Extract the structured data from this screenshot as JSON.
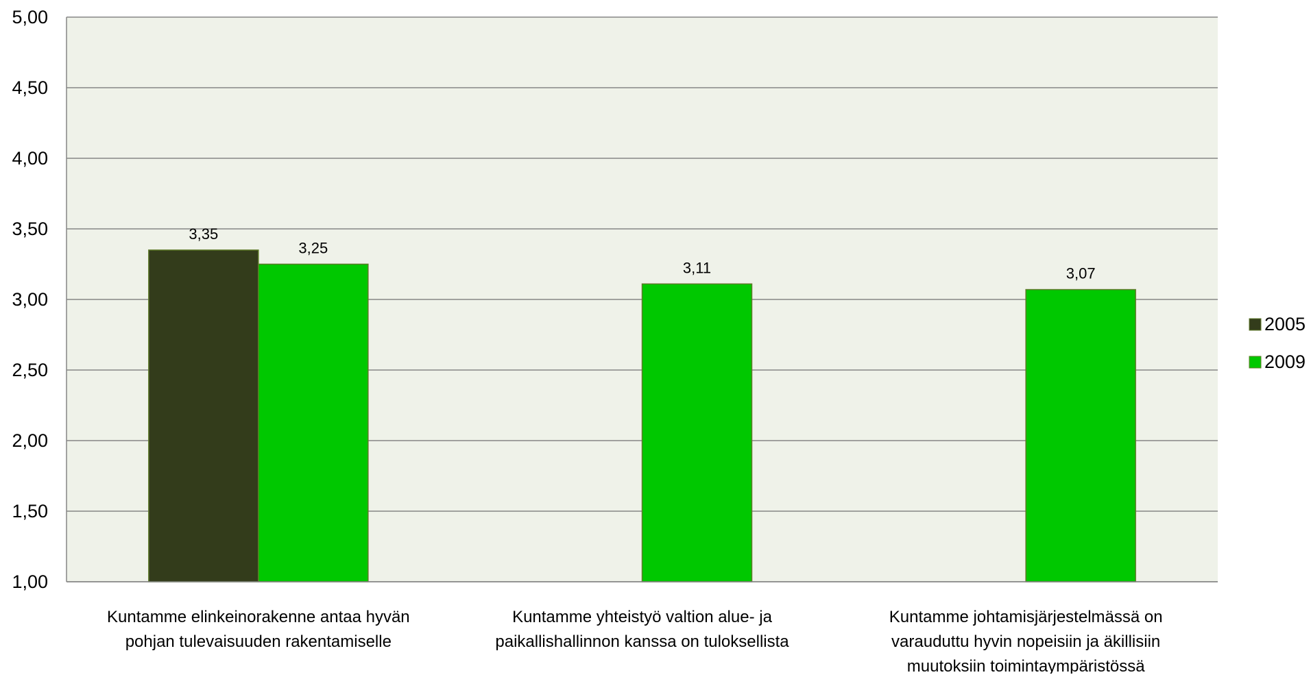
{
  "chart_data": {
    "type": "bar",
    "title": "",
    "xlabel": "",
    "ylabel": "",
    "ylim": [
      1.0,
      5.0
    ],
    "yticks": [
      "1,00",
      "1,50",
      "2,00",
      "2,50",
      "3,00",
      "3,50",
      "4,00",
      "4,50",
      "5,00"
    ],
    "grid": true,
    "legend_position": "right",
    "categories": [
      [
        "Kuntamme elinkeinorakenne antaa hyvän",
        "pohjan tulevaisuuden rakentamiselle"
      ],
      [
        "Kuntamme yhteistyö valtion alue- ja",
        "paikallishallinnon kanssa on tuloksellista"
      ],
      [
        "Kuntamme johtamisjärjestelmässä on",
        "varauduttu hyvin nopeisiin ja äkillisiin",
        "muutoksiin toimintaympäristössä"
      ]
    ],
    "series": [
      {
        "name": "2005",
        "color": "#333c1b",
        "values": [
          3.35,
          null,
          null
        ],
        "labels": [
          "3,35",
          "",
          ""
        ]
      },
      {
        "name": "2009",
        "color": "#00c800",
        "values": [
          3.25,
          3.11,
          3.07
        ],
        "labels": [
          "3,25",
          "3,11",
          "3,07"
        ]
      }
    ],
    "plot_background": "#eff2e9",
    "gridline_color": "#868686"
  }
}
